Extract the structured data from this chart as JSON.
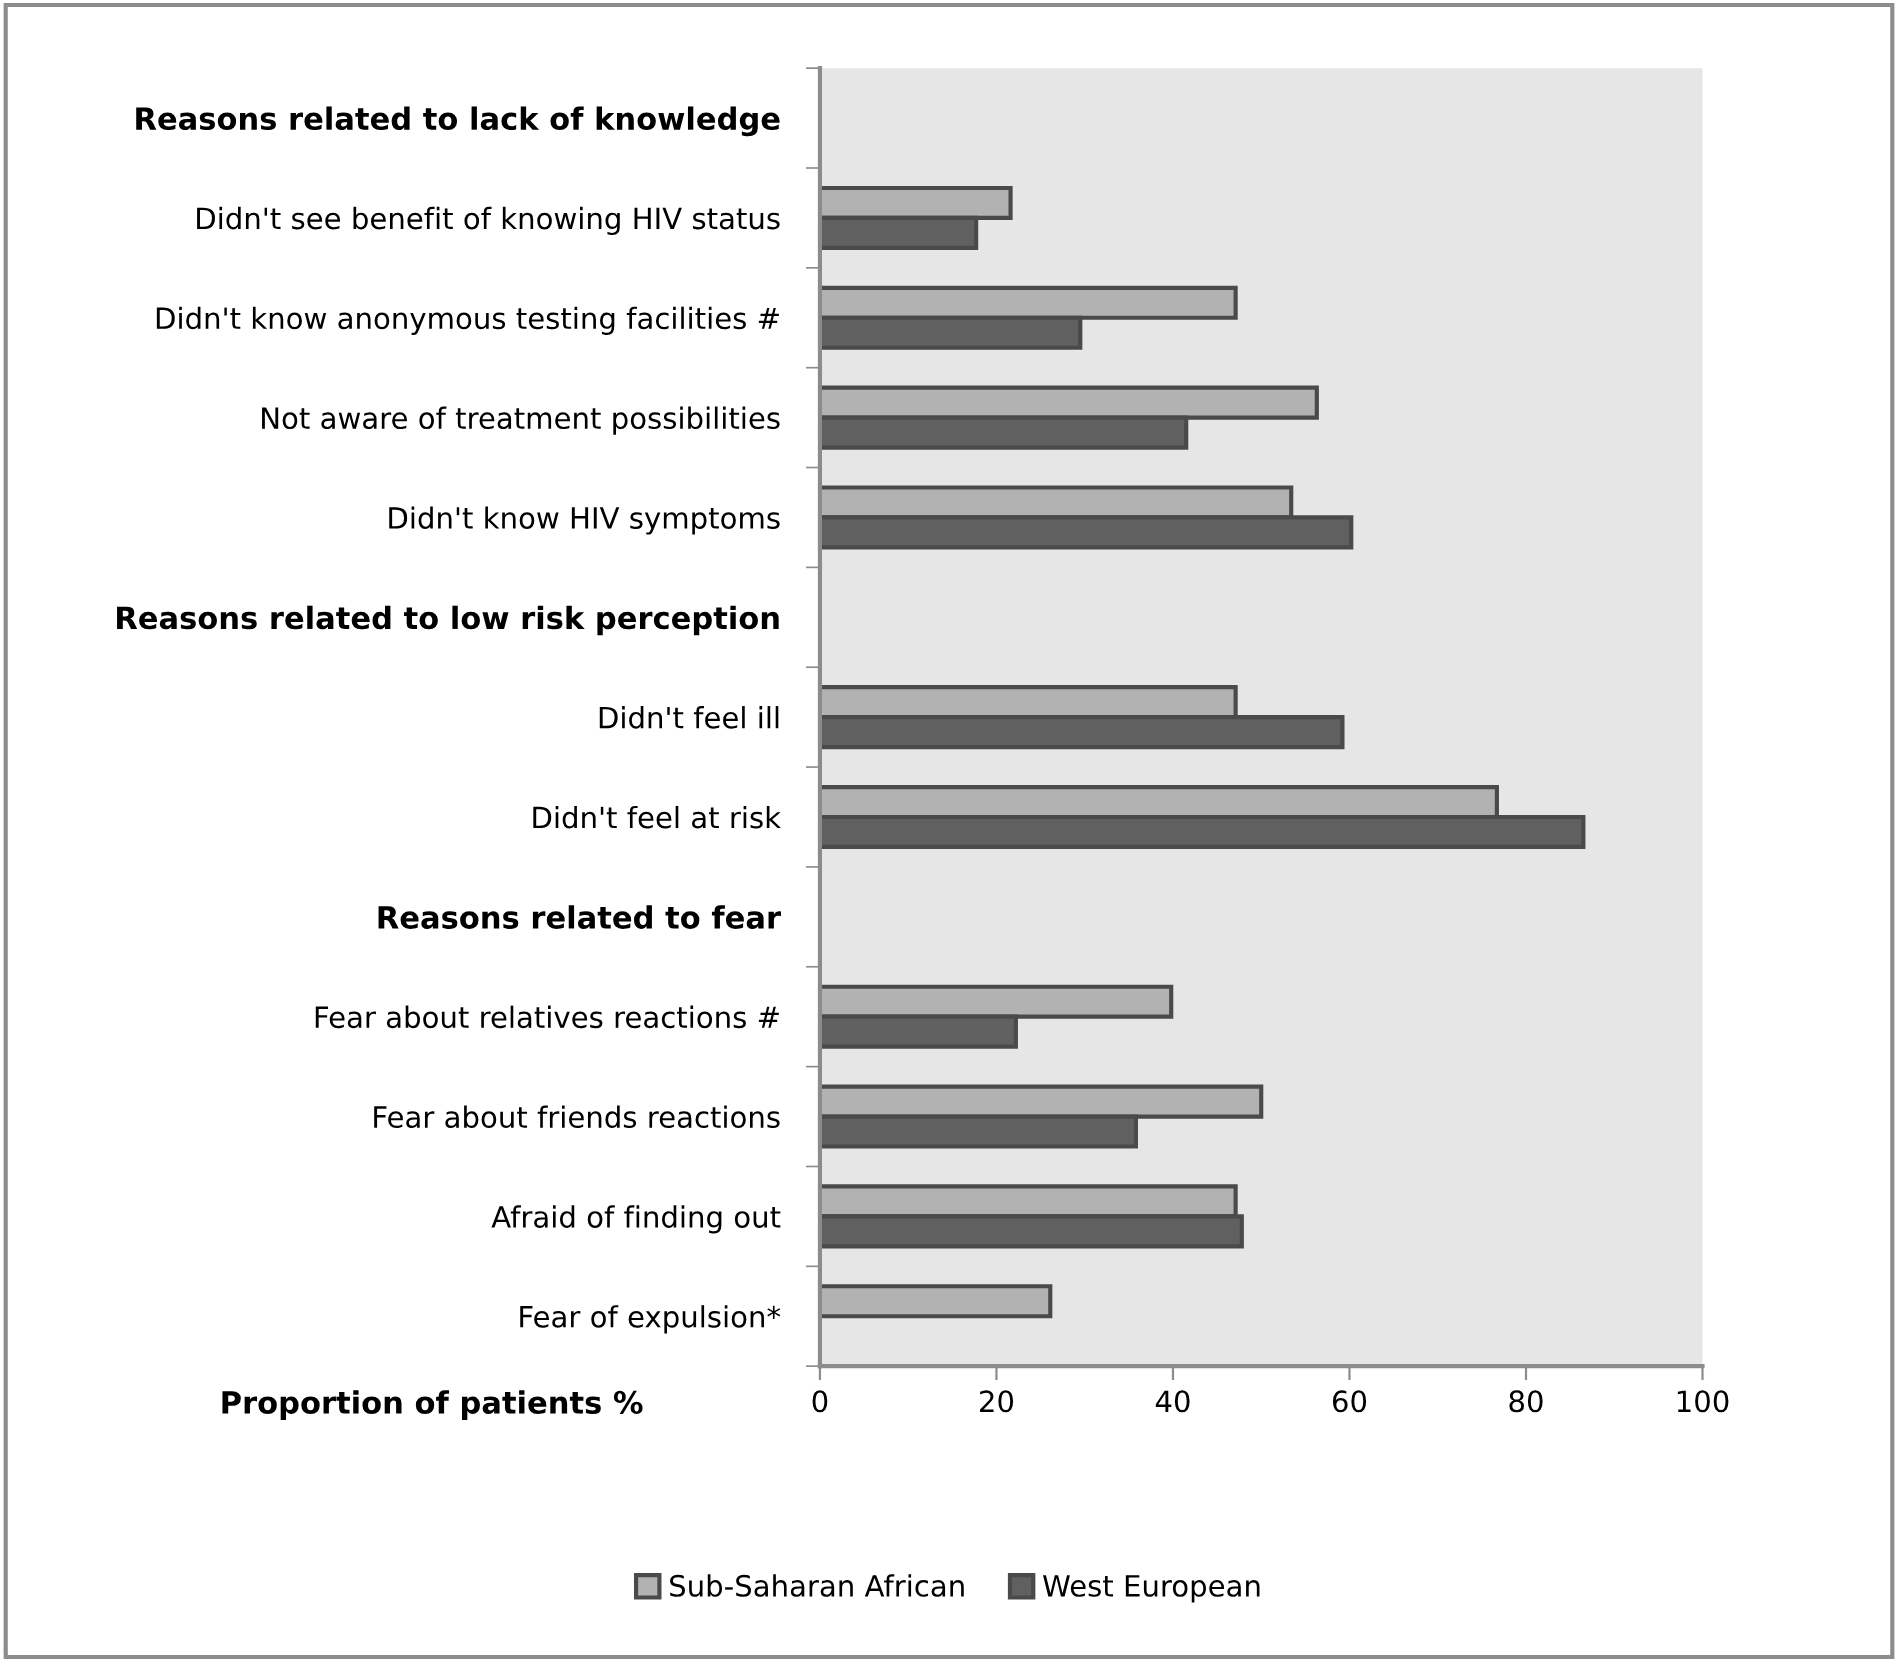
{
  "chart_data": {
    "type": "bar",
    "orientation": "horizontal",
    "xlabel": "Proportion of patients %",
    "categories": [
      "Reasons related to lack of knowledge",
      "Didn't see benefit of knowing HIV status",
      "Didn't know anonymous testing facilities #",
      "Not aware of treatment possibilities",
      "Didn't know HIV symptoms",
      "Reasons related to low risk perception",
      "Didn't feel ill",
      "Didn't feel at risk",
      "Reasons related to fear",
      "Fear about relatives reactions #",
      "Fear about friends reactions",
      "Afraid of finding out",
      "Fear of expulsion*"
    ],
    "series": [
      {
        "name": "Sub-Saharan African",
        "color": "#b2b2b2",
        "values": [
          null,
          21.6,
          47.1,
          56.3,
          53.4,
          null,
          47.1,
          76.7,
          null,
          39.8,
          50.0,
          47.1,
          26.1
        ]
      },
      {
        "name": "West European",
        "color": "#606060",
        "values": [
          null,
          17.7,
          29.5,
          41.5,
          60.2,
          null,
          59.2,
          86.5,
          null,
          22.2,
          35.8,
          47.8,
          null
        ]
      }
    ],
    "xlim": [
      0,
      100
    ],
    "xticks": [
      0,
      20,
      40,
      60,
      80,
      100
    ],
    "grid": false,
    "legend": "bottom"
  }
}
